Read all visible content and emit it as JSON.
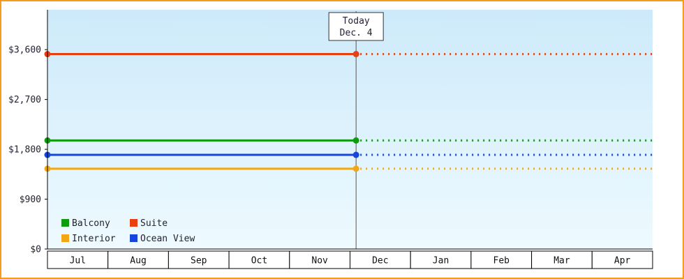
{
  "chart_data": {
    "type": "line",
    "title": "",
    "xlabel": "",
    "ylabel": "",
    "x_categories": [
      "Jul",
      "Aug",
      "Sep",
      "Oct",
      "Nov",
      "Dec",
      "Jan",
      "Feb",
      "Mar",
      "Apr"
    ],
    "y_ticks": [
      {
        "value": 0,
        "label": "$0"
      },
      {
        "value": 900,
        "label": "$900"
      },
      {
        "value": 1800,
        "label": "$1,800"
      },
      {
        "value": 2700,
        "label": "$2,700"
      },
      {
        "value": 3600,
        "label": "$3,600"
      }
    ],
    "ylim": [
      0,
      4320
    ],
    "grid": false,
    "legend_position": "bottom-left-inside",
    "today": {
      "line1": "Today",
      "line2": "Dec. 4",
      "month_index": 5,
      "month_fraction": 0.1
    },
    "series": [
      {
        "name": "Suite",
        "color": "#e84011",
        "value": 3520,
        "style": "solid-then-dotted-projection"
      },
      {
        "name": "Balcony",
        "color": "#0e9c0e",
        "value": 1960,
        "style": "solid-then-dotted-projection"
      },
      {
        "name": "Ocean View",
        "color": "#1646dc",
        "value": 1700,
        "style": "solid-then-dotted-projection"
      },
      {
        "name": "Interior",
        "color": "#f2a714",
        "value": 1450,
        "style": "solid-then-dotted-projection"
      }
    ],
    "legend_rows": [
      [
        "Balcony",
        "Suite"
      ],
      [
        "Interior",
        "Ocean View"
      ]
    ],
    "colors": {
      "frame_border": "#f79b1d",
      "plot_bg_top": "#cdeafa",
      "plot_bg_bottom": "#eefaff",
      "axis": "#000000",
      "text": "#222233",
      "today_line": "#555555",
      "month_cell_bg": "#ffffff",
      "today_box_bg": "#ffffff",
      "today_box_border": "#333333"
    }
  }
}
